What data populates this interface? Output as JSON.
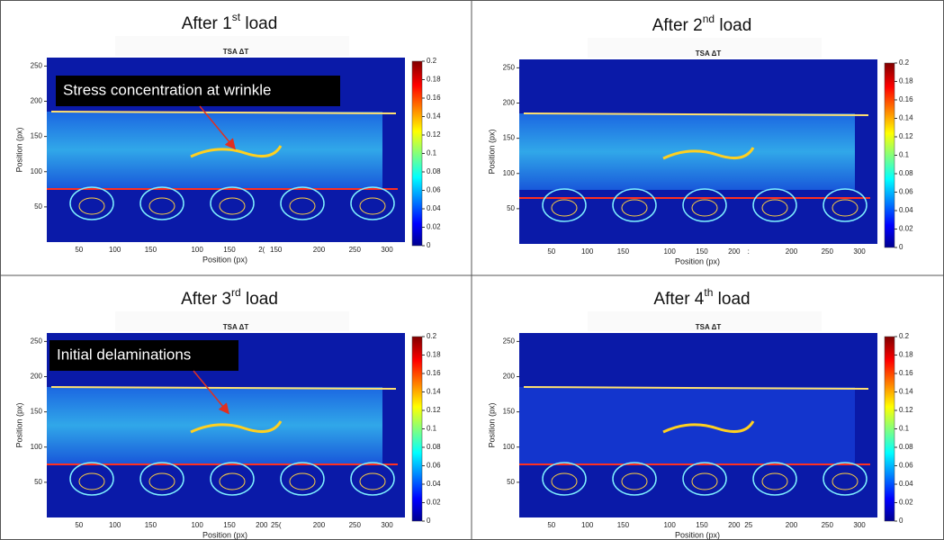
{
  "image_title": "TSA ΔT",
  "xlabel": "Position (px)",
  "ylabel": "Position (px)",
  "ylim": [
    0,
    262
  ],
  "yticks": [
    50,
    100,
    150,
    200,
    250
  ],
  "colorbar": {
    "lim": [
      0,
      0.2
    ],
    "ticks": [
      0,
      0.02,
      0.04,
      0.06,
      0.08,
      0.1,
      0.12,
      0.14,
      0.16,
      0.18,
      0.2
    ]
  },
  "panels": [
    {
      "title": {
        "before": "After 1",
        "sup": "st",
        "after": " load"
      },
      "annotation": "Stress concentration at wrinkle",
      "x_tick_labels": [
        "50",
        "100",
        "150",
        "100",
        "150",
        "2(",
        "150",
        "200",
        "250",
        "300"
      ]
    },
    {
      "title": {
        "before": "After 2",
        "sup": "nd",
        "after": " load"
      },
      "x_tick_labels": [
        "50",
        "100",
        "150",
        "100",
        "150",
        "200",
        ":",
        "200",
        "250",
        "300"
      ]
    },
    {
      "title": {
        "before": "After 3",
        "sup": "rd",
        "after": " load"
      },
      "annotation": "Initial delaminations",
      "x_tick_labels": [
        "50",
        "100",
        "150",
        "100",
        "150",
        "200",
        "25(",
        "200",
        "250",
        "300"
      ]
    },
    {
      "title": {
        "before": "After 4",
        "sup": "th",
        "after": " load"
      },
      "x_tick_labels": [
        "50",
        "100",
        "150",
        "100",
        "150",
        "200",
        "25",
        "200",
        "250",
        "300"
      ]
    }
  ]
}
